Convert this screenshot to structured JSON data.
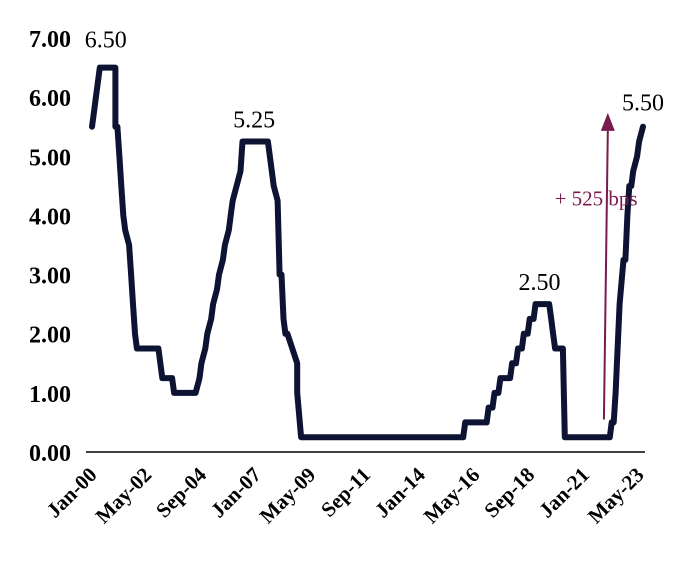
{
  "chart_data": {
    "type": "line",
    "title": "",
    "xlabel": "",
    "ylabel": "",
    "ylim": [
      0,
      7
    ],
    "yticks": [
      "0.00",
      "1.00",
      "2.00",
      "3.00",
      "4.00",
      "5.00",
      "6.00",
      "7.00"
    ],
    "xticks": [
      {
        "label": "Jan-00",
        "date": "2000-01"
      },
      {
        "label": "May-02",
        "date": "2002-05"
      },
      {
        "label": "Sep-04",
        "date": "2004-09"
      },
      {
        "label": "Jan-07",
        "date": "2007-01"
      },
      {
        "label": "May-09",
        "date": "2009-05"
      },
      {
        "label": "Sep-11",
        "date": "2011-09"
      },
      {
        "label": "Jan-14",
        "date": "2014-01"
      },
      {
        "label": "May-16",
        "date": "2016-05"
      },
      {
        "label": "Sep-18",
        "date": "2018-09"
      },
      {
        "label": "Jan-21",
        "date": "2021-01"
      },
      {
        "label": "May-23",
        "date": "2023-05"
      }
    ],
    "grid": false,
    "legend": "none",
    "series_color": "#0d1433",
    "series": [
      {
        "x": [
          "2000-01",
          "2000-02",
          "2000-03",
          "2000-05",
          "2000-06",
          "2001-01",
          "2001-01",
          "2001-02",
          "2001-03",
          "2001-04",
          "2001-05",
          "2001-06",
          "2001-08",
          "2001-09",
          "2001-10",
          "2001-11",
          "2001-12",
          "2002-11",
          "2003-01",
          "2003-06",
          "2003-07",
          "2004-06",
          "2004-08",
          "2004-09",
          "2004-11",
          "2004-12",
          "2005-02",
          "2005-03",
          "2005-05",
          "2005-06",
          "2005-08",
          "2005-09",
          "2005-11",
          "2005-12",
          "2006-01",
          "2006-03",
          "2006-05",
          "2006-06",
          "2007-07",
          "2007-09",
          "2007-10",
          "2007-12",
          "2008-01",
          "2008-02",
          "2008-03",
          "2008-04",
          "2008-05",
          "2008-10",
          "2008-10",
          "2008-12",
          "2015-11",
          "2015-12",
          "2016-11",
          "2016-12",
          "2017-02",
          "2017-03",
          "2017-05",
          "2017-06",
          "2017-11",
          "2017-12",
          "2018-02",
          "2018-03",
          "2018-05",
          "2018-06",
          "2018-08",
          "2018-09",
          "2018-11",
          "2018-12",
          "2019-07",
          "2019-08",
          "2019-09",
          "2019-10",
          "2020-02",
          "2020-03",
          "2022-02",
          "2022-03",
          "2022-04",
          "2022-05",
          "2022-06",
          "2022-07",
          "2022-09",
          "2022-10",
          "2022-11",
          "2022-12",
          "2023-01",
          "2023-02",
          "2023-04",
          "2023-05",
          "2023-07"
        ],
        "y": [
          5.5,
          5.75,
          6.0,
          6.5,
          6.5,
          6.5,
          5.5,
          5.5,
          5.0,
          4.5,
          4.0,
          3.75,
          3.5,
          3.0,
          2.5,
          2.0,
          1.75,
          1.75,
          1.25,
          1.25,
          1.0,
          1.0,
          1.25,
          1.5,
          1.75,
          2.0,
          2.25,
          2.5,
          2.75,
          3.0,
          3.25,
          3.5,
          3.75,
          4.0,
          4.25,
          4.5,
          4.75,
          5.25,
          5.25,
          4.75,
          4.5,
          4.25,
          3.0,
          3.0,
          2.25,
          2.0,
          2.0,
          1.5,
          1.0,
          0.25,
          0.25,
          0.5,
          0.5,
          0.75,
          0.75,
          1.0,
          1.0,
          1.25,
          1.25,
          1.5,
          1.5,
          1.75,
          1.75,
          2.0,
          2.0,
          2.25,
          2.25,
          2.5,
          2.5,
          2.25,
          2.0,
          1.75,
          1.75,
          0.25,
          0.25,
          0.5,
          0.5,
          1.0,
          1.75,
          2.5,
          3.25,
          3.25,
          4.0,
          4.5,
          4.5,
          4.75,
          5.0,
          5.25,
          5.5
        ]
      }
    ],
    "annotations": [
      {
        "text": "6.50",
        "x": "2000-06",
        "y": 6.5
      },
      {
        "text": "5.25",
        "x": "2006-12",
        "y": 5.25
      },
      {
        "text": "2.50",
        "x": "2019-02",
        "y": 2.5
      },
      {
        "text": "5.50",
        "x": "2023-07",
        "y": 5.5
      },
      {
        "text": "+ 525 bps",
        "x": "2021-07",
        "y": 4.3
      }
    ],
    "arrow": {
      "from": {
        "x": "2021-11",
        "y": 0.55
      },
      "to": {
        "x": "2022-01",
        "y": 5.7
      },
      "color": "#7a1a4f"
    }
  }
}
